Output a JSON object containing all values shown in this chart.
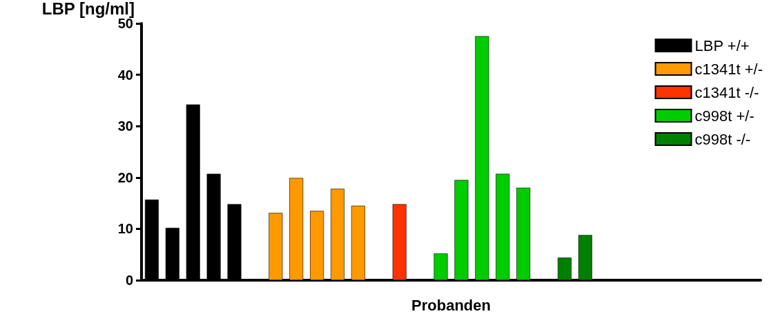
{
  "chart_data": {
    "type": "bar",
    "xlabel": "Probanden",
    "ylabel": "LBP [ng/ml]",
    "categories": [
      null,
      null,
      null,
      null,
      null,
      null,
      null,
      null,
      null,
      null,
      null,
      null,
      null,
      null,
      null,
      null,
      null,
      null,
      null,
      null,
      null,
      null,
      null,
      null,
      null,
      null,
      null,
      null,
      null,
      null
    ],
    "series": [
      {
        "name": "LBP +/+",
        "color": "#000000",
        "values": [
          15.7,
          10.2,
          34.2,
          20.7,
          14.8,
          null,
          null,
          null,
          null,
          null,
          null,
          null,
          null,
          null,
          null,
          null,
          null,
          null,
          null,
          null,
          null,
          null,
          null,
          null,
          null,
          null,
          null,
          null,
          null,
          null
        ]
      },
      {
        "name": "c1341t +/-",
        "color": "#ff9900",
        "values": [
          null,
          null,
          null,
          null,
          null,
          null,
          13.1,
          19.9,
          13.5,
          17.8,
          14.5,
          null,
          null,
          null,
          null,
          null,
          null,
          null,
          null,
          null,
          null,
          null,
          null,
          null,
          null,
          null,
          null,
          null,
          null,
          null
        ]
      },
      {
        "name": "c1341t -/-",
        "color": "#ff3300",
        "values": [
          null,
          null,
          null,
          null,
          null,
          null,
          null,
          null,
          null,
          null,
          null,
          null,
          14.8,
          null,
          null,
          null,
          null,
          null,
          null,
          null,
          null,
          null,
          null,
          null,
          null,
          null,
          null,
          null,
          null,
          null
        ]
      },
      {
        "name": "c998t +/-",
        "color": "#00cc00",
        "values": [
          null,
          null,
          null,
          null,
          null,
          null,
          null,
          null,
          null,
          null,
          null,
          null,
          null,
          null,
          5.2,
          19.5,
          47.5,
          20.7,
          18.0,
          null,
          null,
          null,
          null,
          null,
          null,
          null,
          null,
          null,
          null,
          null
        ]
      },
      {
        "name": "c998t -/-",
        "color": "#008000",
        "values": [
          null,
          null,
          null,
          null,
          null,
          null,
          null,
          null,
          null,
          null,
          null,
          null,
          null,
          null,
          null,
          null,
          null,
          null,
          null,
          null,
          4.4,
          8.8,
          null,
          null,
          null,
          null,
          null,
          null,
          null,
          null
        ]
      }
    ],
    "ylim": [
      0,
      50
    ],
    "yticks": [
      0,
      10,
      20,
      30,
      40,
      50
    ],
    "grid": false,
    "legend": "top right"
  }
}
